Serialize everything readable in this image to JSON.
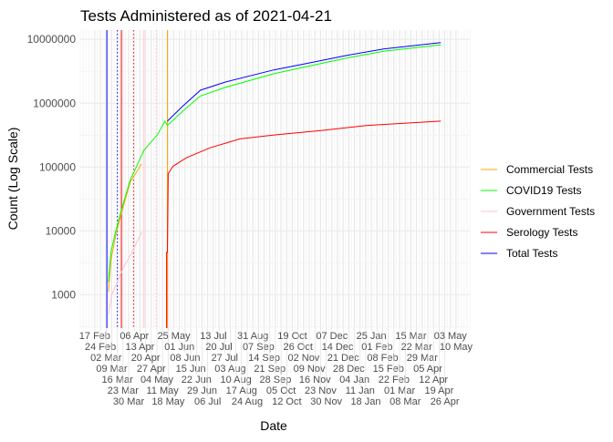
{
  "chart_data": {
    "type": "line",
    "title": "Tests Administered as of 2021-04-21",
    "xlabel": "Date",
    "ylabel": "Count (Log Scale)",
    "y_scale": "log10",
    "ylim": [
      300,
      14000000
    ],
    "xlim": [
      "2020-01-30",
      "2021-05-27"
    ],
    "grid": true,
    "legend_position": "right",
    "y_ticks": [
      {
        "value": 1000,
        "label": "1000"
      },
      {
        "value": 10000,
        "label": "10000"
      },
      {
        "value": 100000,
        "label": "100000"
      },
      {
        "value": 1000000,
        "label": "1000000"
      },
      {
        "value": 10000000,
        "label": "10000000"
      }
    ],
    "x_ticks": [
      {
        "date": "2020-02-17",
        "label": "17 Feb"
      },
      {
        "date": "2020-02-24",
        "label": "24 Feb"
      },
      {
        "date": "2020-03-02",
        "label": "02 Mar"
      },
      {
        "date": "2020-03-09",
        "label": "09 Mar"
      },
      {
        "date": "2020-03-16",
        "label": "16 Mar"
      },
      {
        "date": "2020-03-23",
        "label": "23 Mar"
      },
      {
        "date": "2020-03-30",
        "label": "30 Mar"
      },
      {
        "date": "2020-04-06",
        "label": "06 Apr"
      },
      {
        "date": "2020-04-13",
        "label": "13 Apr"
      },
      {
        "date": "2020-04-20",
        "label": "20 Apr"
      },
      {
        "date": "2020-04-27",
        "label": "27 Apr"
      },
      {
        "date": "2020-05-04",
        "label": "04 May"
      },
      {
        "date": "2020-05-11",
        "label": "11 May"
      },
      {
        "date": "2020-05-18",
        "label": "18 May"
      },
      {
        "date": "2020-05-25",
        "label": "25 May"
      },
      {
        "date": "2020-06-01",
        "label": "01 Jun"
      },
      {
        "date": "2020-06-08",
        "label": "08 Jun"
      },
      {
        "date": "2020-06-15",
        "label": "15 Jun"
      },
      {
        "date": "2020-06-22",
        "label": "22 Jun"
      },
      {
        "date": "2020-06-29",
        "label": "29 Jun"
      },
      {
        "date": "2020-07-06",
        "label": "06 Jul"
      },
      {
        "date": "2020-07-13",
        "label": "13 Jul"
      },
      {
        "date": "2020-07-20",
        "label": "20 Jul"
      },
      {
        "date": "2020-07-27",
        "label": "27 Jul"
      },
      {
        "date": "2020-08-03",
        "label": "03 Aug"
      },
      {
        "date": "2020-08-10",
        "label": "10 Aug"
      },
      {
        "date": "2020-08-17",
        "label": "17 Aug"
      },
      {
        "date": "2020-08-24",
        "label": "24 Aug"
      },
      {
        "date": "2020-08-31",
        "label": "31 Aug"
      },
      {
        "date": "2020-09-07",
        "label": "07 Sep"
      },
      {
        "date": "2020-09-14",
        "label": "14 Sep"
      },
      {
        "date": "2020-09-21",
        "label": "21 Sep"
      },
      {
        "date": "2020-09-28",
        "label": "28 Sep"
      },
      {
        "date": "2020-10-05",
        "label": "05 Oct"
      },
      {
        "date": "2020-10-12",
        "label": "12 Oct"
      },
      {
        "date": "2020-10-19",
        "label": "19 Oct"
      },
      {
        "date": "2020-10-26",
        "label": "26 Oct"
      },
      {
        "date": "2020-11-02",
        "label": "02 Nov"
      },
      {
        "date": "2020-11-09",
        "label": "09 Nov"
      },
      {
        "date": "2020-11-16",
        "label": "16 Nov"
      },
      {
        "date": "2020-11-23",
        "label": "23 Nov"
      },
      {
        "date": "2020-11-30",
        "label": "30 Nov"
      },
      {
        "date": "2020-12-07",
        "label": "07 Dec"
      },
      {
        "date": "2020-12-14",
        "label": "14 Dec"
      },
      {
        "date": "2020-12-21",
        "label": "21 Dec"
      },
      {
        "date": "2020-12-28",
        "label": "28 Dec"
      },
      {
        "date": "2021-01-04",
        "label": "04 Jan"
      },
      {
        "date": "2021-01-11",
        "label": "11 Jan"
      },
      {
        "date": "2021-01-18",
        "label": "18 Jan"
      },
      {
        "date": "2021-01-25",
        "label": "25 Jan"
      },
      {
        "date": "2021-02-01",
        "label": "01 Feb"
      },
      {
        "date": "2021-02-08",
        "label": "08 Feb"
      },
      {
        "date": "2021-02-15",
        "label": "15 Feb"
      },
      {
        "date": "2021-02-22",
        "label": "22 Feb"
      },
      {
        "date": "2021-03-01",
        "label": "01 Mar"
      },
      {
        "date": "2021-03-08",
        "label": "08 Mar"
      },
      {
        "date": "2021-03-15",
        "label": "15 Mar"
      },
      {
        "date": "2021-03-22",
        "label": "22 Mar"
      },
      {
        "date": "2021-03-29",
        "label": "29 Mar"
      },
      {
        "date": "2021-04-05",
        "label": "05 Apr"
      },
      {
        "date": "2021-04-12",
        "label": "12 Apr"
      },
      {
        "date": "2021-04-19",
        "label": "19 Apr"
      },
      {
        "date": "2021-04-26",
        "label": "26 Apr"
      },
      {
        "date": "2021-05-03",
        "label": "03 May"
      },
      {
        "date": "2021-05-10",
        "label": "10 May"
      }
    ],
    "vertical_lines": [
      {
        "date": "2020-03-03",
        "color": "#0000ff",
        "style": "solid"
      },
      {
        "date": "2020-03-16",
        "color": "#0000ff",
        "style": "dotted"
      },
      {
        "date": "2020-03-21",
        "color": "#ff0000",
        "style": "solid"
      },
      {
        "date": "2020-04-05",
        "color": "#ff0000",
        "style": "dotted"
      },
      {
        "date": "2020-04-18",
        "color": "#ffc0cb",
        "style": "solid"
      },
      {
        "date": "2020-05-03",
        "color": "#ffc0cb",
        "style": "dotted"
      },
      {
        "date": "2020-05-17",
        "color": "#ffa500",
        "style": "solid"
      }
    ],
    "series": [
      {
        "name": "Commercial Tests",
        "color": "#ffa500",
        "points": [
          [
            "2020-03-05",
            1100
          ],
          [
            "2020-03-08",
            3500
          ],
          [
            "2020-03-14",
            8500
          ],
          [
            "2020-03-21",
            19000
          ],
          [
            "2020-04-01",
            58000
          ],
          [
            "2020-04-15",
            112000
          ]
        ]
      },
      {
        "name": "COVID19 Tests",
        "color": "#00ff00",
        "points": [
          [
            "2020-03-05",
            1585
          ],
          [
            "2020-03-08",
            4600
          ],
          [
            "2020-03-14",
            10000
          ],
          [
            "2020-03-21",
            21400
          ],
          [
            "2020-04-01",
            63000
          ],
          [
            "2020-04-18",
            183000
          ],
          [
            "2020-05-05",
            326000
          ],
          [
            "2020-05-14",
            525000
          ],
          [
            "2020-05-17",
            450000
          ],
          [
            "2020-06-05",
            750000
          ],
          [
            "2020-06-27",
            1300000
          ],
          [
            "2020-07-28",
            1770000
          ],
          [
            "2020-09-26",
            2900000
          ],
          [
            "2020-11-10",
            3850000
          ],
          [
            "2020-12-25",
            5100000
          ],
          [
            "2021-02-09",
            6500000
          ],
          [
            "2021-04-21",
            8200000
          ]
        ]
      },
      {
        "name": "Government Tests",
        "color": "#ffc0cb",
        "points": [
          [
            "2020-03-05",
            490
          ],
          [
            "2020-03-09",
            1000
          ],
          [
            "2020-03-23",
            2600
          ],
          [
            "2020-04-03",
            4600
          ],
          [
            "2020-04-15",
            9500
          ]
        ]
      },
      {
        "name": "Serology Tests",
        "color": "#ff0000",
        "points": [
          [
            "2020-05-16",
            300
          ],
          [
            "2020-05-16",
            4600
          ],
          [
            "2020-05-17",
            4600
          ],
          [
            "2020-05-18",
            79000
          ],
          [
            "2020-05-24",
            103000
          ],
          [
            "2020-06-10",
            141000
          ],
          [
            "2020-07-09",
            200000
          ],
          [
            "2020-08-15",
            276000
          ],
          [
            "2020-09-29",
            320000
          ],
          [
            "2020-11-25",
            375000
          ],
          [
            "2021-01-20",
            450000
          ],
          [
            "2021-04-21",
            525000
          ]
        ]
      },
      {
        "name": "Total Tests",
        "color": "#0000ff",
        "points": [
          [
            "2020-05-17",
            525000
          ],
          [
            "2020-06-05",
            900000
          ],
          [
            "2020-06-27",
            1600000
          ],
          [
            "2020-07-28",
            2150000
          ],
          [
            "2020-09-26",
            3330000
          ],
          [
            "2020-11-10",
            4300000
          ],
          [
            "2020-12-25",
            5600000
          ],
          [
            "2021-02-09",
            7100000
          ],
          [
            "2021-04-21",
            8900000
          ]
        ]
      }
    ]
  }
}
